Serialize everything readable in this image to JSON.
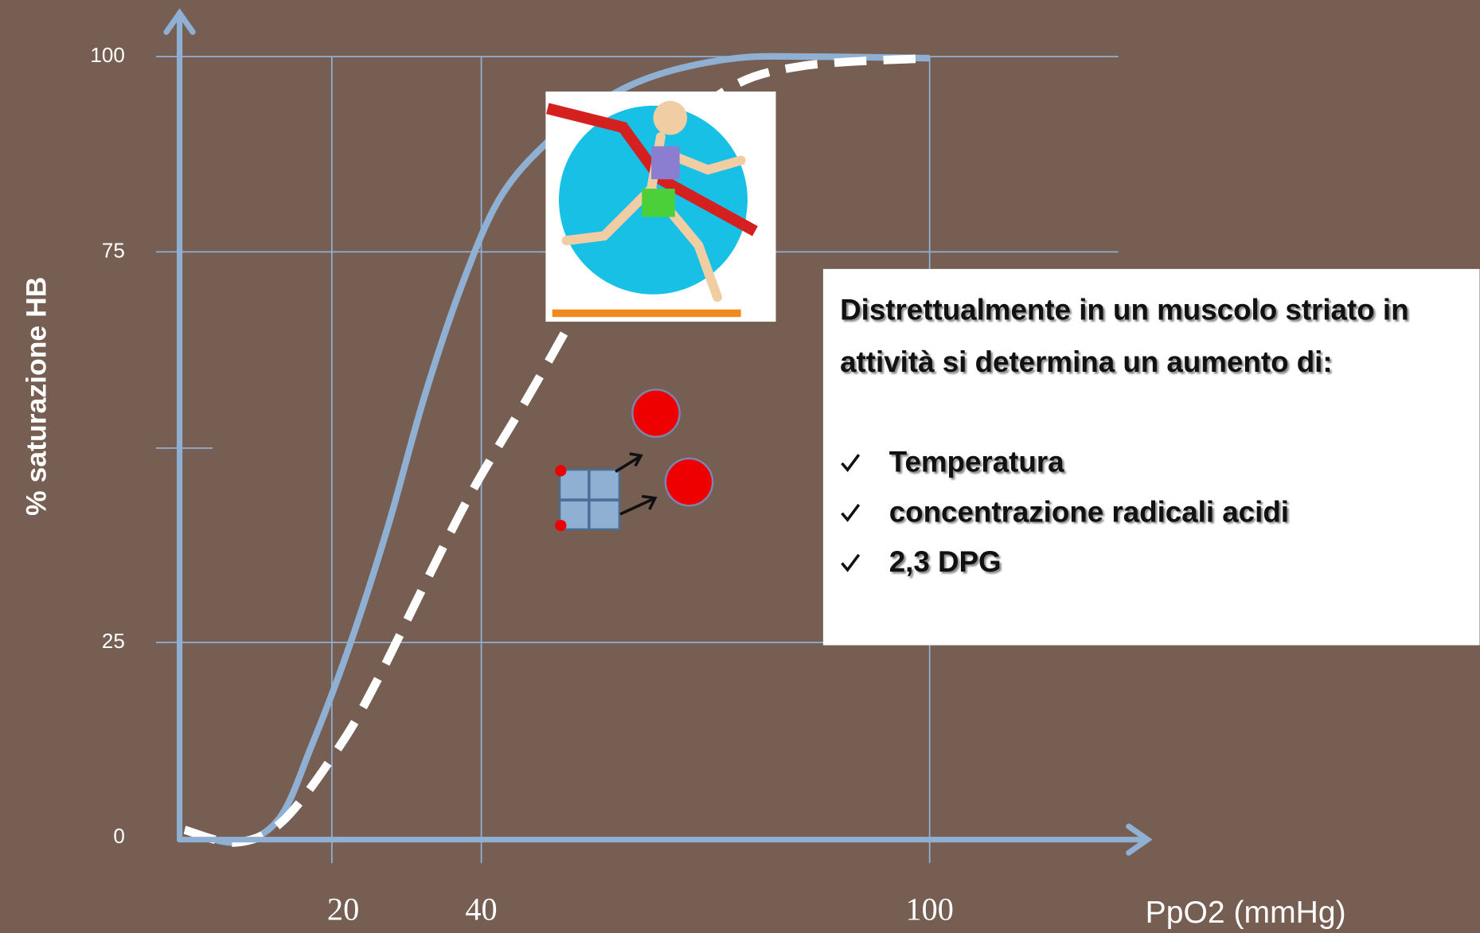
{
  "chart_data": {
    "type": "line",
    "ylabel": "% saturazione HB",
    "xlabel": "PpO2 (mmHg)",
    "xlim": [
      0,
      129
    ],
    "ylim": [
      0,
      105
    ],
    "xticks": [
      20,
      40,
      100
    ],
    "yticks": [
      0,
      25,
      75,
      100
    ],
    "grid": true,
    "series": [
      {
        "color": "#8fb0d3",
        "style": "solid",
        "x": [
          0.3,
          7.2,
          12.9,
          17.3,
          22.3,
          27.4,
          32.4,
          37.5,
          42.5,
          48.9,
          56.4,
          64,
          74.1,
          84.2,
          100
        ],
        "values": [
          1,
          -0.6,
          2.4,
          11.8,
          24.4,
          39.5,
          56.5,
          71,
          81.9,
          89.1,
          94.5,
          97.8,
          99.8,
          100,
          99.8
        ]
      },
      {
        "color": "#ffffff",
        "style": "dashed",
        "x": [
          0.3,
          7.2,
          13.5,
          21.1,
          26.1,
          32.4,
          38.8,
          46.3,
          52.7,
          57.7,
          64,
          72.9,
          83,
          100
        ],
        "values": [
          1,
          -0.6,
          2.2,
          11.8,
          20.2,
          32.4,
          44.4,
          56.5,
          67.4,
          77.1,
          87.9,
          95.8,
          98.8,
          99.8
        ]
      }
    ]
  },
  "callout": {
    "heading": "Distrettualmente in un muscolo striato in attività si determina un aumento di:",
    "items": [
      "Temperatura",
      "concentrazione radicali acidi",
      "2,3 DPG"
    ]
  }
}
